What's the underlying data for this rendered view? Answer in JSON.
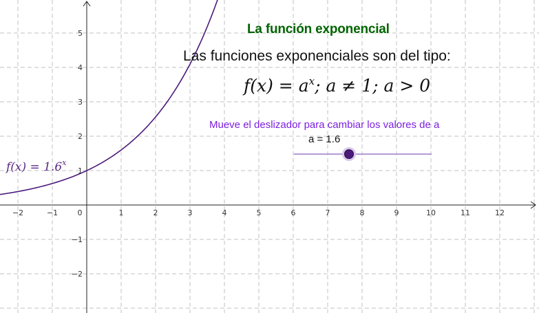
{
  "applet": {
    "title": "La función exponencial",
    "subtitle": "Las funciones exponenciales son del tipo:",
    "formula": {
      "lhs": "f(x) = a",
      "exponent": "x",
      "rhs": "; a ≠ 1; a > 0"
    },
    "instruction": "Mueve el deslizador para cambiar los valores de a",
    "slider": {
      "label": "a = 1.6",
      "value": 1.6,
      "min": 0,
      "max": 4
    },
    "curve_label": {
      "base": "f(x)  =  1.6",
      "exponent": "x"
    }
  },
  "axes": {
    "x_ticks": [
      "−2",
      "−1",
      "0",
      "1",
      "2",
      "3",
      "4",
      "5",
      "6",
      "7",
      "8",
      "9",
      "10",
      "11",
      "12"
    ],
    "y_ticks": [
      "−2",
      "−1",
      "1",
      "2",
      "3",
      "4",
      "5"
    ],
    "xlim": [
      -2.5,
      13.1
    ],
    "ylim": [
      -3.1,
      5.95
    ]
  },
  "colors": {
    "title": "#006400",
    "instruction": "#7a1fe0",
    "curve": "#4b1a7a",
    "slider_line": "#b69ad6",
    "slider_knob": "#4b1a7a",
    "grid": "#c0c0c0"
  }
}
